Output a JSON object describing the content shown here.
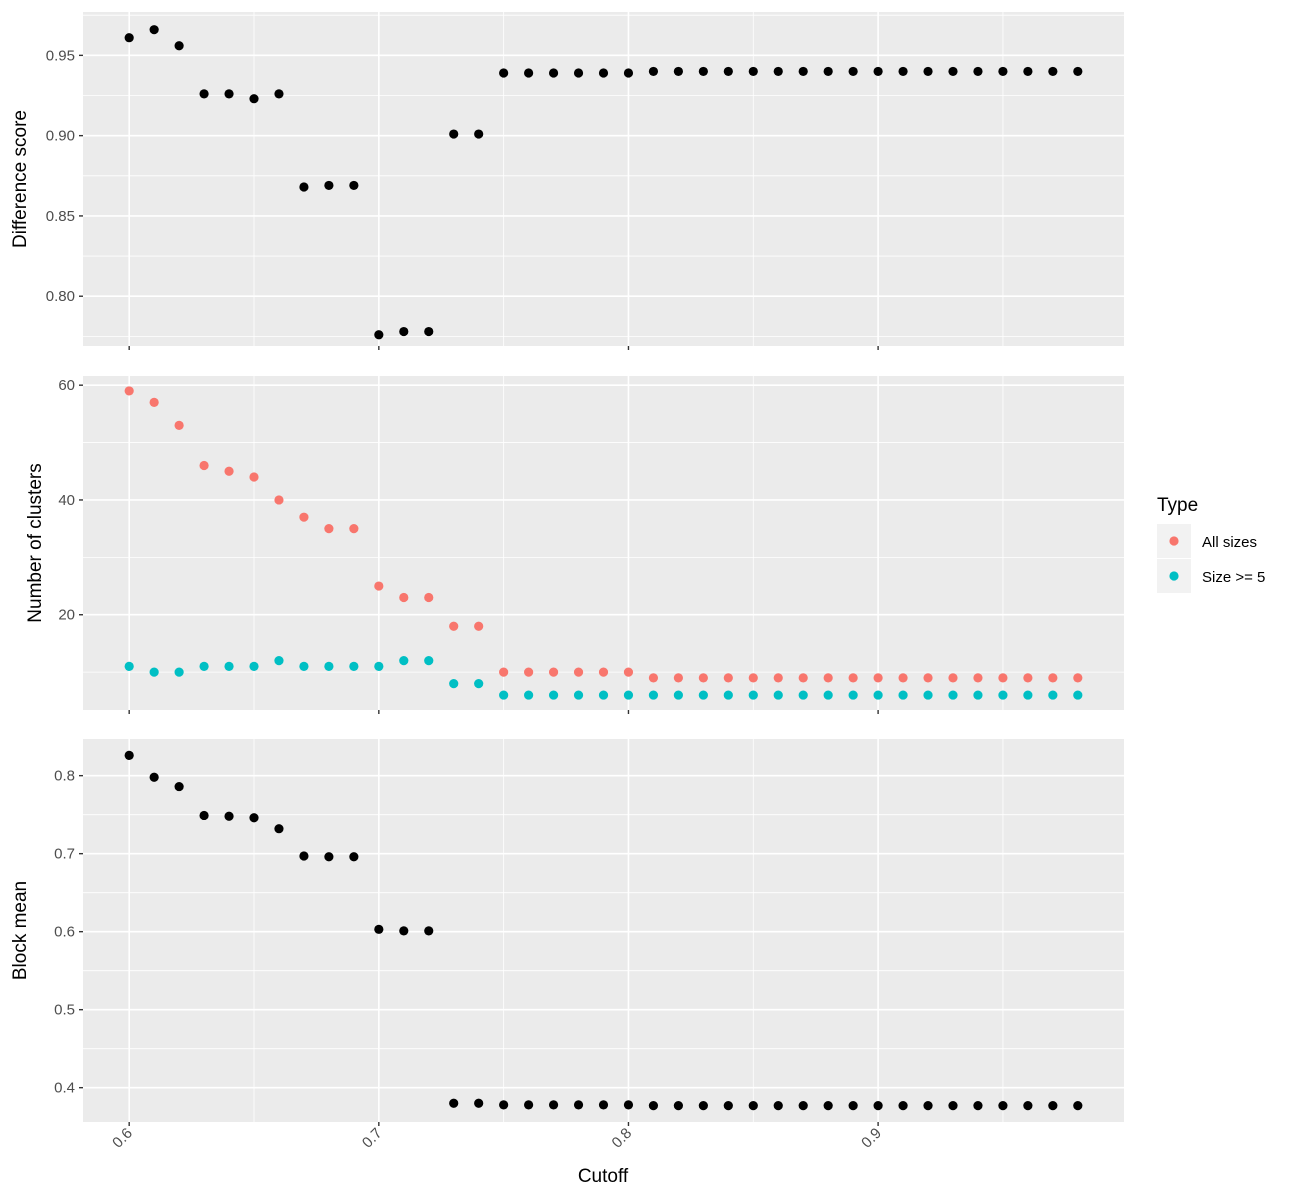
{
  "chart_data": {
    "type": "scatter",
    "xlabel": "Cutoff",
    "x_breaks": [
      0.6,
      0.7,
      0.8,
      0.9
    ],
    "x_tick_labels": [
      "0.6",
      "0.7",
      "0.8",
      "0.9"
    ],
    "xlim": [
      0.5815,
      0.9985
    ],
    "grid": true,
    "legend": {
      "title": "Type",
      "position": "right",
      "entries": [
        {
          "label": "All sizes",
          "color": "#F8766D"
        },
        {
          "label": "Size >= 5",
          "color": "#00BFC4"
        }
      ]
    },
    "x": [
      0.6,
      0.61,
      0.62,
      0.63,
      0.64,
      0.65,
      0.66,
      0.67,
      0.68,
      0.69,
      0.7,
      0.71,
      0.72,
      0.73,
      0.74,
      0.75,
      0.76,
      0.77,
      0.78,
      0.79,
      0.8,
      0.81,
      0.82,
      0.83,
      0.84,
      0.85,
      0.86,
      0.87,
      0.88,
      0.89,
      0.9,
      0.91,
      0.92,
      0.93,
      0.94,
      0.95,
      0.96,
      0.97,
      0.98
    ],
    "panels": [
      {
        "ylabel": "Difference score",
        "ylim": [
          0.769,
          0.977
        ],
        "y_breaks": [
          0.8,
          0.85,
          0.9,
          0.95
        ],
        "y_tick_labels": [
          "0.80",
          "0.85",
          "0.90",
          "0.95"
        ],
        "series": [
          {
            "color": "#000000",
            "values": [
              0.961,
              0.966,
              0.956,
              0.926,
              0.926,
              0.923,
              0.926,
              0.868,
              0.869,
              0.869,
              0.776,
              0.778,
              0.778,
              0.901,
              0.901,
              0.939,
              0.939,
              0.939,
              0.939,
              0.939,
              0.939,
              0.94,
              0.94,
              0.94,
              0.94,
              0.94,
              0.94,
              0.94,
              0.94,
              0.94,
              0.94,
              0.94,
              0.94,
              0.94,
              0.94,
              0.94,
              0.94,
              0.94,
              0.94
            ]
          }
        ]
      },
      {
        "ylabel": "Number of clusters",
        "ylim": [
          3.4,
          61.6
        ],
        "y_breaks": [
          20,
          40,
          60
        ],
        "y_tick_labels": [
          "20",
          "40",
          "60"
        ],
        "series": [
          {
            "name": "All sizes",
            "color": "#F8766D",
            "values": [
              59,
              57,
              53,
              46,
              45,
              44,
              40,
              37,
              35,
              35,
              25,
              23,
              23,
              18,
              18,
              10,
              10,
              10,
              10,
              10,
              10,
              9,
              9,
              9,
              9,
              9,
              9,
              9,
              9,
              9,
              9,
              9,
              9,
              9,
              9,
              9,
              9,
              9,
              9
            ]
          },
          {
            "name": "Size >= 5",
            "color": "#00BFC4",
            "values": [
              11,
              10,
              10,
              11,
              11,
              11,
              12,
              11,
              11,
              11,
              11,
              12,
              12,
              8,
              8,
              6,
              6,
              6,
              6,
              6,
              6,
              6,
              6,
              6,
              6,
              6,
              6,
              6,
              6,
              6,
              6,
              6,
              6,
              6,
              6,
              6,
              6,
              6,
              6
            ]
          }
        ]
      },
      {
        "ylabel": "Block mean",
        "ylim": [
          0.356,
          0.847
        ],
        "y_breaks": [
          0.4,
          0.5,
          0.6,
          0.7,
          0.8
        ],
        "y_tick_labels": [
          "0.4",
          "0.5",
          "0.6",
          "0.7",
          "0.8"
        ],
        "series": [
          {
            "color": "#000000",
            "values": [
              0.826,
              0.798,
              0.786,
              0.749,
              0.748,
              0.746,
              0.732,
              0.697,
              0.696,
              0.696,
              0.603,
              0.601,
              0.601,
              0.38,
              0.38,
              0.378,
              0.378,
              0.378,
              0.378,
              0.378,
              0.378,
              0.377,
              0.377,
              0.377,
              0.377,
              0.377,
              0.377,
              0.377,
              0.377,
              0.377,
              0.377,
              0.377,
              0.377,
              0.377,
              0.377,
              0.377,
              0.377,
              0.377,
              0.377
            ]
          }
        ]
      }
    ]
  }
}
